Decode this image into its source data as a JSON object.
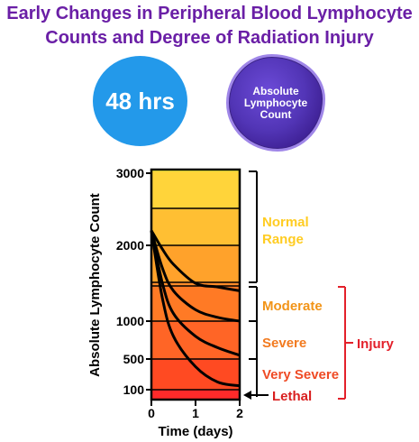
{
  "header": {
    "title_line1": "Early Changes in Peripheral Blood Lymphocyte",
    "title_line2": "Counts and Degree of Radiation Injury"
  },
  "badges": {
    "time": "48 hrs",
    "measure": "Absolute Lymphocyte Count",
    "colors": {
      "time": "#2399ea",
      "measure": "#4b2ea8"
    }
  },
  "chart_data": {
    "type": "line",
    "xlabel": "Time (days)",
    "ylabel": "Absolute Lymphocyte Count",
    "x_ticks": [
      "0",
      "1",
      "2"
    ],
    "y_ticks": [
      "3000",
      "2000",
      "1000",
      "500",
      "100"
    ],
    "xlim": [
      0,
      2
    ],
    "bands": [
      {
        "color": "#ffff44"
      },
      {
        "color": "#ffd43a"
      },
      {
        "color": "#ffbf33"
      },
      {
        "color": "#ffa22b"
      },
      {
        "color": "#ff8c29"
      },
      {
        "color": "#ff7a25"
      },
      {
        "color": "#ff6526"
      },
      {
        "color": "#ff4a22"
      },
      {
        "color": "#ff2a2a"
      }
    ],
    "series": [
      {
        "x": [
          0,
          0.25,
          0.5,
          1,
          1.5,
          2
        ],
        "y": [
          2200,
          1950,
          1750,
          1500,
          1450,
          1400
        ]
      },
      {
        "x": [
          0,
          0.25,
          0.5,
          1,
          1.5,
          2
        ],
        "y": [
          2200,
          1700,
          1400,
          1150,
          1050,
          1000
        ]
      },
      {
        "x": [
          0,
          0.25,
          0.5,
          1,
          1.5,
          2
        ],
        "y": [
          2200,
          1500,
          1100,
          800,
          650,
          550
        ]
      },
      {
        "x": [
          0,
          0.25,
          0.5,
          1,
          1.5,
          2
        ],
        "y": [
          2200,
          1300,
          800,
          400,
          200,
          150
        ]
      }
    ],
    "categories": [
      {
        "label": "Normal Range",
        "color": "#ffcc22"
      },
      {
        "label": "Moderate",
        "color": "#f29418"
      },
      {
        "label": "Severe",
        "color": "#f27a1f"
      },
      {
        "label": "Very Severe",
        "color": "#ef4a24"
      },
      {
        "label": "Lethal",
        "color": "#d91f1f"
      }
    ],
    "group_label": "Injury",
    "group_color": "#e3202a",
    "grid": true
  }
}
